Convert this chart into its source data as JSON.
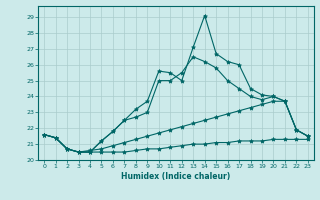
{
  "xlabel": "Humidex (Indice chaleur)",
  "ylabel": "",
  "xlim": [
    -0.5,
    23.5
  ],
  "ylim": [
    20.0,
    29.7
  ],
  "yticks": [
    20,
    21,
    22,
    23,
    24,
    25,
    26,
    27,
    28,
    29
  ],
  "xticks": [
    0,
    1,
    2,
    3,
    4,
    5,
    6,
    7,
    8,
    9,
    10,
    11,
    12,
    13,
    14,
    15,
    16,
    17,
    18,
    19,
    20,
    21,
    22,
    23
  ],
  "background_color": "#cceaea",
  "grid_color": "#aacccc",
  "line_color": "#006666",
  "lines": [
    {
      "x": [
        0,
        1,
        2,
        3,
        4,
        5,
        6,
        7,
        8,
        9,
        10,
        11,
        12,
        13,
        14,
        15,
        16,
        17,
        18,
        19,
        20,
        21,
        22,
        23
      ],
      "y": [
        21.6,
        21.4,
        20.7,
        20.5,
        20.5,
        21.2,
        21.8,
        22.5,
        23.2,
        23.7,
        25.6,
        25.5,
        25.0,
        27.1,
        29.1,
        26.7,
        26.2,
        26.0,
        24.5,
        24.1,
        24.0,
        23.7,
        21.9,
        21.5
      ]
    },
    {
      "x": [
        0,
        1,
        2,
        3,
        4,
        5,
        6,
        7,
        8,
        9,
        10,
        11,
        12,
        13,
        14,
        15,
        16,
        17,
        18,
        19,
        20,
        21,
        22,
        23
      ],
      "y": [
        21.6,
        21.4,
        20.7,
        20.5,
        20.5,
        21.2,
        21.8,
        22.5,
        22.7,
        23.0,
        25.0,
        25.0,
        25.5,
        26.5,
        26.2,
        25.8,
        25.0,
        24.5,
        24.0,
        23.8,
        24.0,
        23.7,
        21.9,
        21.5
      ]
    },
    {
      "x": [
        0,
        1,
        2,
        3,
        4,
        5,
        6,
        7,
        8,
        9,
        10,
        11,
        12,
        13,
        14,
        15,
        16,
        17,
        18,
        19,
        20,
        21,
        22,
        23
      ],
      "y": [
        21.6,
        21.4,
        20.7,
        20.5,
        20.6,
        20.7,
        20.9,
        21.1,
        21.3,
        21.5,
        21.7,
        21.9,
        22.1,
        22.3,
        22.5,
        22.7,
        22.9,
        23.1,
        23.3,
        23.5,
        23.7,
        23.7,
        21.9,
        21.5
      ]
    },
    {
      "x": [
        0,
        1,
        2,
        3,
        4,
        5,
        6,
        7,
        8,
        9,
        10,
        11,
        12,
        13,
        14,
        15,
        16,
        17,
        18,
        19,
        20,
        21,
        22,
        23
      ],
      "y": [
        21.6,
        21.4,
        20.7,
        20.5,
        20.5,
        20.5,
        20.5,
        20.5,
        20.6,
        20.7,
        20.7,
        20.8,
        20.9,
        21.0,
        21.0,
        21.1,
        21.1,
        21.2,
        21.2,
        21.2,
        21.3,
        21.3,
        21.3,
        21.3
      ]
    }
  ]
}
